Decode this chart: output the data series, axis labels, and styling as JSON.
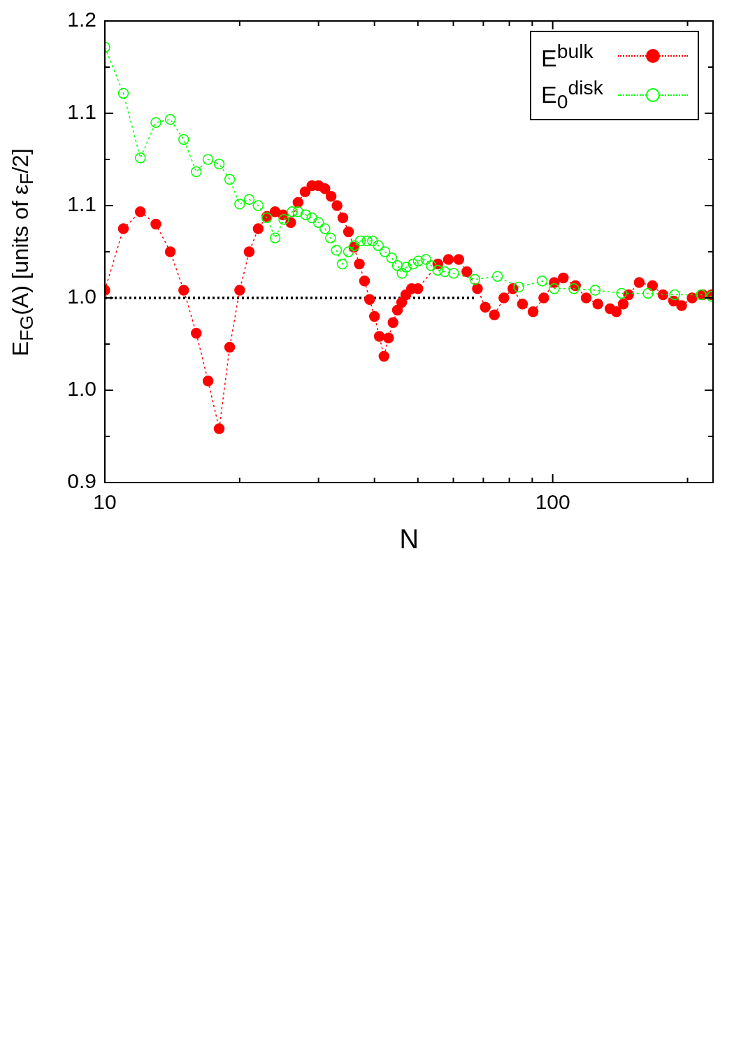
{
  "chart_data": {
    "type": "line",
    "xlabel": "N",
    "ylabel": "E$_{FG}$(A) [units of ε$_{F}$/2]",
    "log": "x",
    "grid": false,
    "legend": "top right",
    "xlim": [
      10,
      228
    ],
    "xticks": [
      10,
      {
        "value": 20,
        "label": null
      },
      {
        "value": 30,
        "label": null
      },
      {
        "value": 40,
        "label": null
      },
      {
        "value": 50,
        "label": null
      },
      {
        "value": 60,
        "label": null
      },
      {
        "value": 70,
        "label": null
      },
      {
        "value": 80,
        "label": null
      },
      {
        "value": 90,
        "label": null
      },
      100,
      {
        "value": 200,
        "label": null
      }
    ],
    "ylim": [
      0.9,
      1.2
    ],
    "yticks": [
      {
        "value": 0.9,
        "label": "0.9"
      },
      {
        "value": 0.93,
        "label": null
      },
      {
        "value": 0.96,
        "label": "1.0"
      },
      {
        "value": 0.99,
        "label": null
      },
      {
        "value": 1.02,
        "label": "1.0"
      },
      {
        "value": 1.05,
        "label": null
      },
      {
        "value": 1.08,
        "label": "1.1"
      },
      {
        "value": 1.11,
        "label": null
      },
      {
        "value": 1.14,
        "label": "1.1"
      },
      {
        "value": 1.17,
        "label": null
      },
      {
        "value": 1.2,
        "label": "1.2"
      }
    ],
    "series": [
      {
        "color": "#000000",
        "marker": "none",
        "line_style": "dotted",
        "x": [
          10,
          67
        ],
        "values": [
          1.02,
          1.02
        ]
      },
      {
        "name": "E$^{bulk}$",
        "color": "#ff0000",
        "marker": "circle",
        "line_style": "dotted",
        "x": [
          10,
          11,
          12,
          13,
          14,
          15,
          16,
          17,
          18,
          19,
          20,
          21,
          22,
          23,
          24,
          25,
          26,
          27,
          28,
          29,
          30,
          31,
          32,
          33,
          34,
          35,
          36,
          37,
          38,
          39,
          40,
          41,
          42,
          43,
          44,
          45,
          46,
          47,
          48.4,
          50,
          55.4,
          58.5,
          61.7,
          64.3,
          67.9,
          70.7,
          74.1,
          77.8,
          81.5,
          85.6,
          90.4,
          95.5,
          100.8,
          105.6,
          112.4,
          118.8,
          126.1,
          134.3,
          138.7,
          143.7,
          147.7,
          156,
          167,
          176.3,
          186.2,
          194,
          204.8,
          216.2,
          226.5
        ],
        "values": [
          1.025,
          1.065,
          1.076,
          1.068,
          1.05,
          1.025,
          0.997,
          0.966,
          0.935,
          0.988,
          1.025,
          1.05,
          1.065,
          1.073,
          1.076,
          1.074,
          1.069,
          1.082,
          1.089,
          1.093,
          1.093,
          1.091,
          1.086,
          1.08,
          1.072,
          1.063,
          1.053,
          1.042,
          1.031,
          1.019,
          1.008,
          0.995,
          0.982,
          0.994,
          1.004,
          1.012,
          1.017,
          1.022,
          1.026,
          1.026,
          1.042,
          1.045,
          1.045,
          1.037,
          1.026,
          1.014,
          1.009,
          1.02,
          1.026,
          1.016,
          1.011,
          1.02,
          1.03,
          1.033,
          1.028,
          1.02,
          1.016,
          1.013,
          1.011,
          1.016,
          1.022,
          1.03,
          1.028,
          1.022,
          1.018,
          1.015,
          1.02,
          1.022,
          1.022
        ]
      },
      {
        "name": "E$_{0}$$^{disk}$",
        "color": "#00ff00",
        "marker": "circle",
        "line_style": "dotted",
        "x": [
          10,
          11,
          12,
          13,
          14,
          15,
          16,
          17,
          18,
          19,
          20,
          21,
          22,
          23,
          24,
          25.1,
          26.2,
          27,
          28.1,
          29,
          30,
          31,
          31.9,
          32.9,
          33.9,
          35,
          36.1,
          37.2,
          38.5,
          39.6,
          40.8,
          42.2,
          43.7,
          45,
          46.1,
          47.1,
          48.8,
          50.1,
          52.1,
          53.5,
          55.4,
          57.4,
          60.1,
          67,
          75.3,
          84,
          94.7,
          100.8,
          111.5,
          124.4,
          142.5,
          163.3,
          187.2,
          214.5,
          226.5
        ],
        "values": [
          1.183,
          1.153,
          1.111,
          1.134,
          1.136,
          1.123,
          1.102,
          1.11,
          1.107,
          1.097,
          1.081,
          1.084,
          1.08,
          1.072,
          1.059,
          1.071,
          1.076,
          1.076,
          1.074,
          1.072,
          1.069,
          1.065,
          1.059,
          1.051,
          1.042,
          1.05,
          1.054,
          1.057,
          1.057,
          1.057,
          1.054,
          1.05,
          1.046,
          1.041,
          1.036,
          1.04,
          1.042,
          1.044,
          1.045,
          1.041,
          1.038,
          1.037,
          1.036,
          1.032,
          1.034,
          1.027,
          1.031,
          1.026,
          1.026,
          1.025,
          1.023,
          1.023,
          1.022,
          1.022,
          1.021
        ]
      }
    ]
  }
}
